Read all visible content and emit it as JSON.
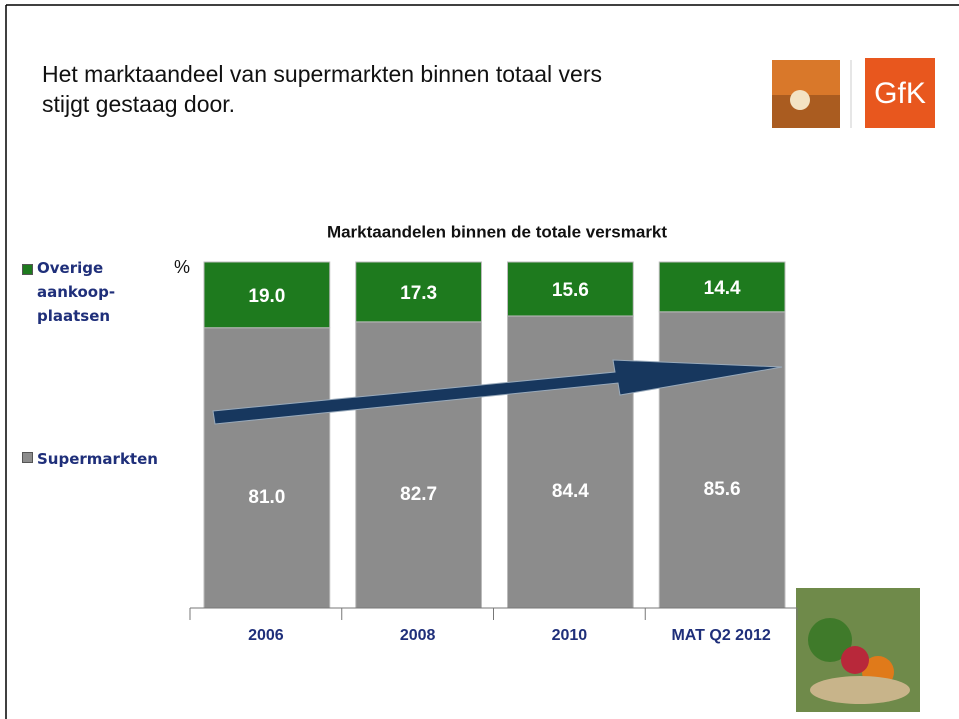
{
  "slide_title": [
    "Het marktaandeel van supermarkten binnen totaal vers",
    "stijgt gestaag door."
  ],
  "logo": "GfK",
  "chart_data": {
    "type": "stacked_bar",
    "title": "Marktaandelen binnen de totale versmarkt",
    "y_label": "%",
    "categories": [
      "2006",
      "2008",
      "2010",
      "MAT Q2 2012"
    ],
    "series": [
      {
        "name": "Supermarkten",
        "color": "#8c8c8c",
        "values": [
          81.0,
          82.7,
          84.4,
          85.6
        ],
        "value_labels": [
          "81.0",
          "82.7",
          "84.4",
          "85.6"
        ]
      },
      {
        "name": "Overige aankoop-plaatsen",
        "color": "#1e7a1e",
        "values": [
          19.0,
          17.3,
          15.6,
          14.4
        ],
        "value_labels": [
          "19.0",
          "17.3",
          "15.6",
          "14.4"
        ]
      }
    ],
    "ylim": [
      0,
      100
    ]
  }
}
